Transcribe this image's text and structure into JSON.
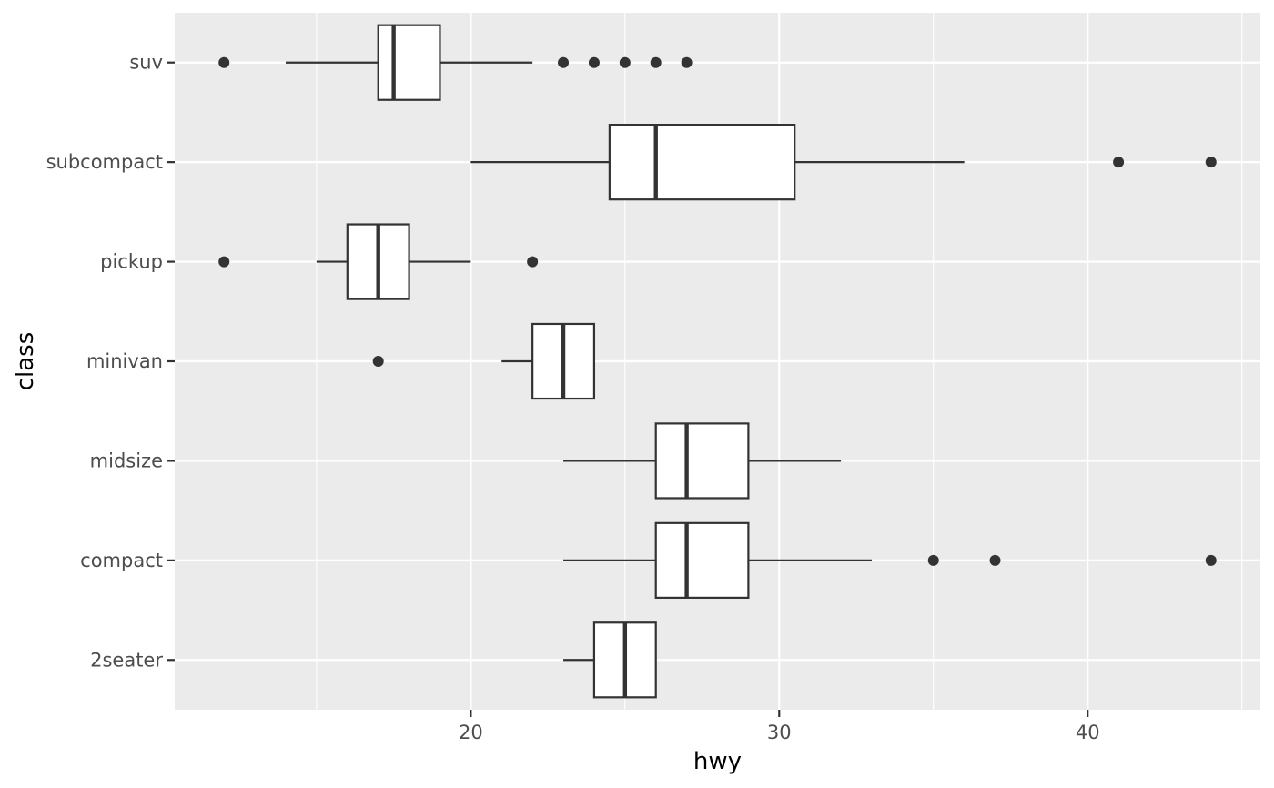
{
  "chart_data": {
    "type": "boxplot",
    "title": "",
    "xlabel": "hwy",
    "ylabel": "class",
    "xlim": [
      10.4,
      45.6
    ],
    "x_ticks": [
      20,
      30,
      40
    ],
    "x_minor_ticks": [
      15,
      25,
      35,
      45
    ],
    "grid": true,
    "legend": "none",
    "colors": {
      "panel": "#ebebeb",
      "grid": "#ffffff",
      "box_fill": "#ffffff",
      "box_line": "#333333",
      "outlier": "#333333",
      "tick_text": "#4d4d4d",
      "title_text": "#000000"
    },
    "categories": [
      "2seater",
      "compact",
      "midsize",
      "minivan",
      "pickup",
      "subcompact",
      "suv"
    ],
    "boxes": [
      {
        "category": "2seater",
        "whisker_low": 23,
        "q1": 24,
        "median": 25,
        "q3": 26,
        "whisker_high": 26,
        "outliers": []
      },
      {
        "category": "compact",
        "whisker_low": 23,
        "q1": 26,
        "median": 27,
        "q3": 29,
        "whisker_high": 33,
        "outliers": [
          35,
          37,
          44
        ]
      },
      {
        "category": "midsize",
        "whisker_low": 23,
        "q1": 26,
        "median": 27,
        "q3": 29,
        "whisker_high": 32,
        "outliers": []
      },
      {
        "category": "minivan",
        "whisker_low": 21,
        "q1": 22,
        "median": 23,
        "q3": 24,
        "whisker_high": 24,
        "outliers": [
          17
        ]
      },
      {
        "category": "pickup",
        "whisker_low": 15,
        "q1": 16,
        "median": 17,
        "q3": 18,
        "whisker_high": 20,
        "outliers": [
          12,
          22
        ]
      },
      {
        "category": "subcompact",
        "whisker_low": 20,
        "q1": 24.5,
        "median": 26,
        "q3": 30.5,
        "whisker_high": 36,
        "outliers": [
          41,
          44
        ]
      },
      {
        "category": "suv",
        "whisker_low": 14,
        "q1": 17,
        "median": 17.5,
        "q3": 19,
        "whisker_high": 22,
        "outliers": [
          12,
          23,
          24,
          25,
          26,
          27
        ]
      }
    ]
  }
}
